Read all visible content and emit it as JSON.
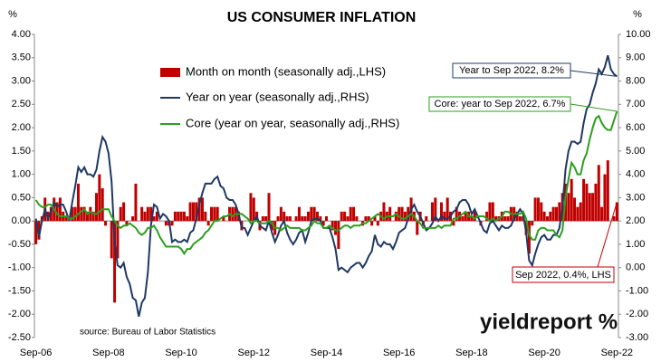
{
  "chart_data": {
    "type": "bar",
    "title": "US CONSUMER INFLATION",
    "y_label": "%",
    "y2_label": "%",
    "source": "source: Bureau of Labor Statistics",
    "logo": "yieldreport %",
    "annotations": [
      "Year to Sep 2022, 8.2%",
      "Core: year to Sep 2022, 6.7%",
      "Sep 2022, 0.4%, LHS"
    ],
    "categories": [
      "Sep-06",
      null,
      null,
      null,
      null,
      null,
      null,
      null,
      null,
      null,
      null,
      null,
      null,
      null,
      null,
      null,
      null,
      null,
      null,
      null,
      null,
      null,
      null,
      null,
      "Sep-08",
      null,
      null,
      null,
      null,
      null,
      null,
      null,
      null,
      null,
      null,
      null,
      null,
      null,
      null,
      null,
      null,
      null,
      null,
      null,
      null,
      null,
      null,
      null,
      "Sep-10",
      null,
      null,
      null,
      null,
      null,
      null,
      null,
      null,
      null,
      null,
      null,
      null,
      null,
      null,
      null,
      null,
      null,
      null,
      null,
      null,
      null,
      null,
      null,
      "Sep-12",
      null,
      null,
      null,
      null,
      null,
      null,
      null,
      null,
      null,
      null,
      null,
      null,
      null,
      null,
      null,
      null,
      null,
      null,
      null,
      null,
      null,
      null,
      null,
      "Sep-14",
      null,
      null,
      null,
      null,
      null,
      null,
      null,
      null,
      null,
      null,
      null,
      null,
      null,
      null,
      null,
      null,
      null,
      null,
      null,
      null,
      null,
      null,
      null,
      "Sep-16",
      null,
      null,
      null,
      null,
      null,
      null,
      null,
      null,
      null,
      null,
      null,
      null,
      null,
      null,
      null,
      null,
      null,
      null,
      null,
      null,
      null,
      null,
      null,
      "Sep-18",
      null,
      null,
      null,
      null,
      null,
      null,
      null,
      null,
      null,
      null,
      null,
      null,
      null,
      null,
      null,
      null,
      null,
      null,
      null,
      null,
      null,
      null,
      null,
      "Sep-20",
      null,
      null,
      null,
      null,
      null,
      null,
      null,
      null,
      null,
      null,
      null,
      null,
      null,
      null,
      null,
      null,
      null,
      null,
      null,
      null,
      null,
      null,
      null,
      "Sep-22"
    ],
    "series": [
      {
        "name": "Month on month (seasonally adj.,LHS)",
        "type": "bar",
        "axis": "y",
        "color": "#c00000",
        "values": [
          -0.5,
          -0.4,
          0.1,
          0.5,
          0.2,
          0.3,
          0.5,
          0.4,
          0.5,
          0.2,
          0.1,
          0.0,
          0.3,
          0.3,
          0.8,
          0.3,
          0.3,
          0.2,
          0.3,
          0.2,
          0.6,
          1.0,
          0.7,
          -0.1,
          0.0,
          -0.8,
          -1.75,
          -0.8,
          0.3,
          0.4,
          -0.1,
          0.0,
          0.1,
          0.8,
          0.0,
          0.3,
          0.2,
          0.3,
          0.3,
          0.1,
          0.2,
          0.0,
          0.0,
          -0.1,
          -0.1,
          -0.1,
          0.2,
          0.2,
          0.2,
          0.2,
          0.1,
          0.4,
          0.4,
          0.4,
          0.5,
          0.5,
          0.2,
          -0.1,
          0.3,
          0.3,
          0.3,
          0.0,
          0.1,
          0.0,
          0.3,
          0.3,
          0.3,
          0.2,
          -0.2,
          0.0,
          0.0,
          0.6,
          0.5,
          0.2,
          -0.2,
          0.1,
          0.1,
          0.6,
          -0.2,
          -0.3,
          0.1,
          0.3,
          0.2,
          0.1,
          0.1,
          0.0,
          0.1,
          0.3,
          0.1,
          0.1,
          0.2,
          0.3,
          0.3,
          0.2,
          0.1,
          -0.1,
          0.1,
          0.0,
          -0.2,
          -0.3,
          -0.6,
          0.2,
          0.2,
          0.1,
          0.3,
          0.3,
          0.1,
          0.0,
          -0.1,
          0.1,
          0.1,
          -0.1,
          0.1,
          -0.1,
          0.2,
          0.4,
          0.2,
          0.3,
          0.0,
          0.2,
          0.3,
          0.3,
          0.2,
          0.3,
          0.5,
          0.2,
          -0.3,
          0.2,
          -0.1,
          0.1,
          0.0,
          0.4,
          0.5,
          0.0,
          0.4,
          0.2,
          0.5,
          0.2,
          -0.1,
          0.3,
          0.2,
          0.1,
          0.2,
          0.2,
          0.1,
          0.2,
          0.0,
          -0.1,
          0.0,
          0.2,
          0.4,
          0.4,
          0.1,
          0.1,
          0.2,
          0.1,
          0.1,
          0.3,
          0.3,
          0.2,
          0.1,
          0.1,
          -0.3,
          -0.7,
          -0.1,
          0.5,
          0.5,
          0.4,
          0.2,
          0.1,
          0.2,
          0.3,
          0.3,
          0.4,
          0.6,
          0.8,
          0.6,
          0.9,
          0.5,
          0.3,
          0.4,
          0.9,
          0.8,
          0.6,
          0.6,
          0.8,
          1.2,
          0.3,
          1.0,
          1.3,
          0.0,
          0.1,
          0.4
        ]
      },
      {
        "name": "Year on year (seasonally adj.,RHS)",
        "type": "line",
        "axis": "y2",
        "color": "#1f3864",
        "values": [
          2.1,
          1.3,
          2.0,
          2.5,
          2.1,
          2.4,
          2.8,
          2.6,
          2.7,
          2.7,
          2.4,
          2.0,
          2.8,
          3.5,
          4.3,
          4.1,
          4.3,
          4.0,
          4.0,
          3.9,
          4.2,
          5.0,
          5.6,
          5.4,
          4.9,
          3.7,
          1.1,
          0.1,
          0.0,
          0.2,
          -0.4,
          -0.7,
          -1.3,
          -1.4,
          -2.1,
          -1.5,
          -1.3,
          -0.2,
          1.8,
          2.7,
          2.6,
          2.1,
          2.3,
          2.2,
          2.0,
          1.1,
          1.2,
          1.1,
          1.1,
          1.2,
          1.1,
          1.5,
          1.6,
          2.1,
          2.7,
          3.2,
          3.6,
          3.6,
          3.6,
          3.8,
          3.9,
          3.5,
          3.4,
          3.0,
          2.9,
          2.9,
          2.7,
          2.3,
          1.7,
          1.7,
          1.4,
          1.7,
          2.0,
          2.2,
          1.8,
          1.7,
          1.6,
          2.0,
          1.5,
          1.1,
          1.4,
          1.8,
          2.0,
          1.5,
          1.2,
          1.0,
          1.2,
          1.5,
          1.6,
          1.1,
          1.5,
          2.0,
          2.1,
          2.1,
          2.0,
          1.7,
          1.7,
          1.7,
          1.3,
          0.8,
          -0.1,
          0.0,
          -0.1,
          -0.2,
          0.0,
          0.1,
          0.2,
          0.2,
          0.0,
          0.2,
          0.5,
          0.7,
          1.4,
          1.0,
          0.9,
          1.1,
          1.0,
          1.0,
          0.8,
          1.1,
          1.5,
          1.6,
          1.7,
          2.1,
          2.5,
          2.7,
          2.4,
          2.2,
          1.9,
          1.6,
          1.7,
          1.9,
          2.2,
          2.0,
          2.2,
          2.1,
          2.1,
          2.2,
          2.4,
          2.5,
          2.8,
          2.9,
          2.9,
          2.7,
          2.3,
          2.5,
          2.2,
          1.9,
          1.6,
          1.5,
          1.9,
          2.0,
          1.8,
          1.6,
          1.8,
          1.7,
          1.7,
          1.8,
          2.1,
          2.3,
          2.5,
          2.3,
          1.5,
          0.3,
          0.1,
          0.6,
          1.0,
          1.3,
          1.4,
          1.2,
          1.2,
          1.4,
          1.4,
          1.7,
          2.6,
          4.2,
          5.0,
          5.4,
          5.4,
          5.3,
          5.4,
          6.2,
          6.8,
          7.0,
          7.5,
          7.9,
          8.5,
          8.3,
          8.6,
          9.1,
          8.5,
          8.3,
          8.2
        ]
      },
      {
        "name": "Core (year on year, seasonally adj.,RHS)",
        "type": "line",
        "axis": "y2",
        "color": "#2e9e1f",
        "values": [
          2.9,
          2.7,
          2.6,
          2.6,
          2.7,
          2.7,
          2.5,
          2.3,
          2.2,
          2.2,
          2.2,
          2.1,
          2.1,
          2.2,
          2.3,
          2.4,
          2.5,
          2.3,
          2.4,
          2.3,
          2.3,
          2.4,
          2.5,
          2.5,
          2.5,
          2.2,
          2.0,
          1.8,
          1.7,
          1.8,
          1.8,
          1.9,
          1.8,
          1.7,
          1.5,
          1.4,
          1.5,
          1.7,
          1.7,
          1.8,
          1.6,
          1.3,
          1.1,
          0.9,
          0.9,
          0.9,
          0.9,
          0.9,
          0.8,
          0.6,
          0.8,
          0.8,
          1.0,
          1.1,
          1.2,
          1.3,
          1.5,
          1.6,
          1.8,
          2.0,
          2.0,
          2.1,
          2.2,
          2.2,
          2.3,
          2.2,
          2.3,
          2.3,
          2.3,
          2.2,
          2.1,
          1.9,
          2.0,
          2.0,
          1.9,
          1.9,
          1.9,
          2.0,
          1.9,
          1.7,
          1.7,
          1.6,
          1.7,
          1.8,
          1.7,
          1.7,
          1.7,
          1.7,
          1.6,
          1.6,
          1.7,
          1.8,
          2.0,
          1.9,
          1.9,
          1.7,
          1.7,
          1.8,
          1.7,
          1.6,
          1.6,
          1.7,
          1.8,
          1.8,
          1.7,
          1.8,
          1.8,
          1.8,
          1.9,
          1.9,
          2.0,
          2.1,
          2.2,
          2.3,
          2.2,
          2.1,
          2.2,
          2.2,
          2.2,
          2.3,
          2.2,
          2.1,
          2.1,
          2.2,
          2.3,
          2.2,
          2.0,
          1.9,
          1.7,
          1.7,
          1.7,
          1.7,
          1.7,
          1.8,
          1.7,
          1.8,
          1.8,
          1.8,
          2.1,
          2.1,
          2.2,
          2.3,
          2.4,
          2.2,
          2.2,
          2.1,
          2.2,
          2.2,
          2.2,
          2.1,
          2.0,
          2.1,
          2.0,
          2.1,
          2.2,
          2.4,
          2.4,
          2.3,
          2.3,
          2.3,
          2.3,
          2.4,
          2.1,
          1.4,
          1.2,
          1.2,
          1.6,
          1.7,
          1.7,
          1.6,
          1.6,
          1.6,
          1.4,
          1.3,
          1.6,
          3.0,
          3.8,
          4.5,
          4.3,
          4.0,
          4.0,
          4.6,
          4.9,
          5.5,
          6.0,
          6.4,
          6.5,
          6.2,
          6.0,
          5.9,
          5.9,
          6.3,
          6.7
        ]
      }
    ],
    "ylim": [
      -2.5,
      4
    ],
    "yticks": [
      {
        "value": -2.5,
        "label": "-2.50"
      },
      {
        "value": -2,
        "label": "-2.00"
      },
      {
        "value": -1.5,
        "label": "-1.50"
      },
      {
        "value": -1,
        "label": "-1.00"
      },
      {
        "value": -0.5,
        "label": "-0.50"
      },
      {
        "value": 0,
        "label": "0.00"
      },
      {
        "value": 0.5,
        "label": "0.50"
      },
      {
        "value": 1,
        "label": "1.00"
      },
      {
        "value": 1.5,
        "label": "1.50"
      },
      {
        "value": 2,
        "label": "2.00"
      },
      {
        "value": 2.5,
        "label": "2.50"
      },
      {
        "value": 3,
        "label": "3.00"
      },
      {
        "value": 3.5,
        "label": "3.50"
      },
      {
        "value": 4,
        "label": "4.00"
      }
    ],
    "y2lim": [
      -3,
      10
    ],
    "y2ticks": [
      {
        "value": -3,
        "label": "-3.00"
      },
      {
        "value": -2,
        "label": "-2.00"
      },
      {
        "value": -1,
        "label": "-1.00"
      },
      {
        "value": 0,
        "label": "0.00"
      },
      {
        "value": 1,
        "label": "1.00"
      },
      {
        "value": 2,
        "label": "2.00"
      },
      {
        "value": 3,
        "label": "3.00"
      },
      {
        "value": 4,
        "label": "4.00"
      },
      {
        "value": 5,
        "label": "5.00"
      },
      {
        "value": 6,
        "label": "6.00"
      },
      {
        "value": 7,
        "label": "7.00"
      },
      {
        "value": 8,
        "label": "8.00"
      },
      {
        "value": 9,
        "label": "9.00"
      },
      {
        "value": 10,
        "label": "10.00"
      }
    ]
  }
}
